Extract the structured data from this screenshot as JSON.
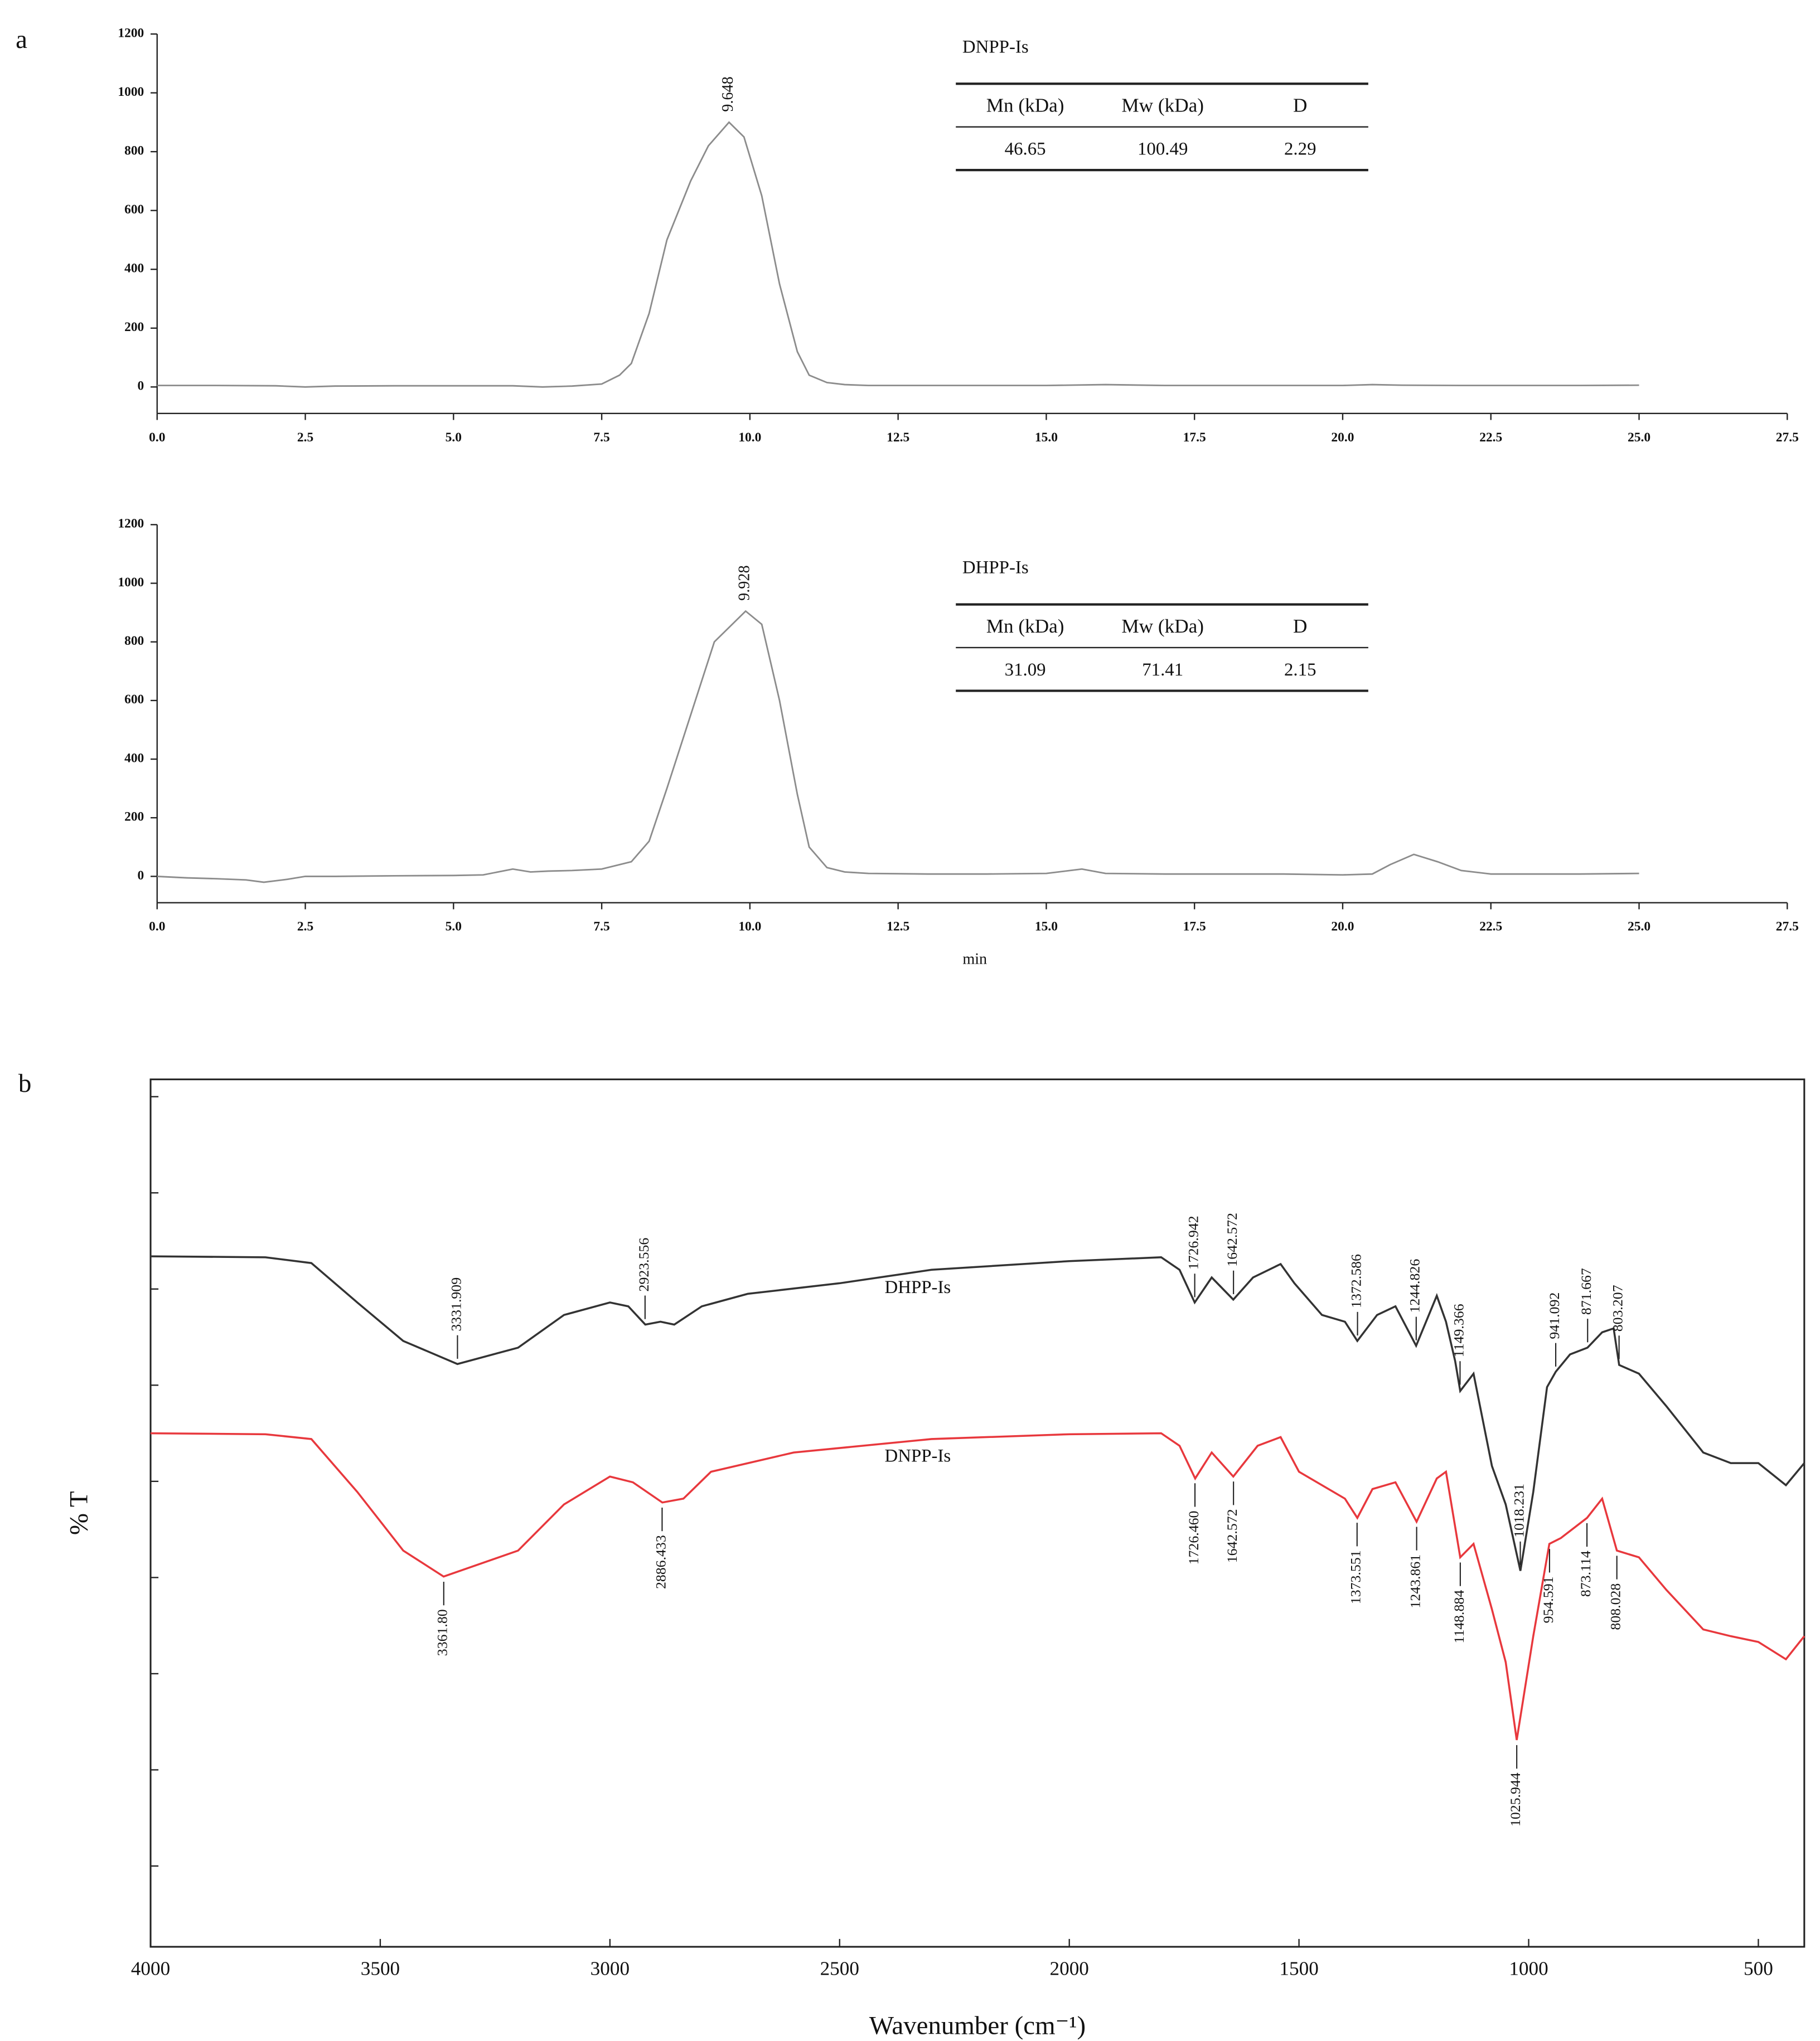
{
  "chart_data": [
    {
      "type": "line",
      "panel_label": "a",
      "xlim": [
        0,
        27.5
      ],
      "xticks": [
        {
          "value": 0,
          "label": "0.0"
        },
        2.5,
        {
          "value": 5,
          "label": "5.0"
        },
        7.5,
        {
          "value": 10,
          "label": "10.0"
        },
        12.5,
        {
          "value": 15,
          "label": "15.0"
        },
        17.5,
        {
          "value": 20,
          "label": "20.0"
        },
        22.5,
        {
          "value": 25,
          "label": "25.0"
        },
        27.5
      ],
      "ylim": [
        -90,
        1200
      ],
      "yticks": [
        0,
        200,
        400,
        600,
        800,
        1000,
        1200
      ],
      "series": [
        {
          "color": "#8c8c8c",
          "x": [
            0,
            1,
            2,
            2.5,
            3,
            4,
            5,
            6,
            6.5,
            7,
            7.5,
            7.8,
            8,
            8.3,
            8.6,
            9,
            9.3,
            9.648,
            9.9,
            10.2,
            10.5,
            10.8,
            11,
            11.3,
            11.6,
            12,
            13,
            14,
            15,
            16,
            17,
            18,
            19,
            20,
            20.5,
            21,
            22,
            23,
            24,
            25
          ],
          "values": [
            5,
            5,
            4,
            0,
            3,
            4,
            4,
            4,
            0,
            3,
            10,
            40,
            80,
            250,
            500,
            700,
            820,
            900,
            850,
            650,
            350,
            120,
            40,
            15,
            8,
            5,
            5,
            5,
            5,
            8,
            5,
            5,
            5,
            5,
            8,
            6,
            5,
            5,
            5,
            6
          ]
        }
      ],
      "peak": {
        "x": 9.648,
        "label": "9.648"
      },
      "table": {
        "title": "DNPP-Is",
        "columns": [
          "Mn (kDa)",
          "Mw (kDa)",
          "D"
        ],
        "rows": [
          [
            "46.65",
            "100.49",
            "2.29"
          ]
        ]
      }
    },
    {
      "type": "line",
      "xlabel": "min",
      "xlim": [
        0,
        27.5
      ],
      "xticks": [
        {
          "value": 0,
          "label": "0.0"
        },
        2.5,
        {
          "value": 5,
          "label": "5.0"
        },
        7.5,
        {
          "value": 10,
          "label": "10.0"
        },
        12.5,
        {
          "value": 15,
          "label": "15.0"
        },
        17.5,
        {
          "value": 20,
          "label": "20.0"
        },
        22.5,
        {
          "value": 25,
          "label": "25.0"
        },
        27.5
      ],
      "ylim": [
        -90,
        1200
      ],
      "yticks": [
        0,
        200,
        400,
        600,
        800,
        1000,
        1200
      ],
      "series": [
        {
          "color": "#8c8c8c",
          "x": [
            0,
            0.5,
            1,
            1.5,
            1.8,
            2.2,
            2.5,
            3,
            4,
            5,
            5.5,
            6,
            6.3,
            6.6,
            7,
            7.5,
            8,
            8.3,
            8.6,
            9,
            9.4,
            9.928,
            10.2,
            10.5,
            10.8,
            11,
            11.3,
            11.6,
            12,
            13,
            14,
            15,
            15.6,
            16,
            17,
            18,
            19,
            20,
            20.5,
            20.8,
            21.2,
            21.6,
            22,
            22.5,
            23,
            24,
            25
          ],
          "values": [
            0,
            -5,
            -8,
            -12,
            -20,
            -10,
            0,
            0,
            2,
            3,
            5,
            25,
            15,
            18,
            20,
            25,
            50,
            120,
            300,
            550,
            800,
            905,
            860,
            600,
            280,
            100,
            30,
            15,
            10,
            8,
            8,
            10,
            25,
            10,
            8,
            8,
            8,
            5,
            8,
            40,
            75,
            50,
            20,
            8,
            8,
            8,
            10
          ]
        }
      ],
      "peak": {
        "x": 9.928,
        "label": "9.928"
      },
      "table": {
        "title": "DHPP-Is",
        "columns": [
          "Mn (kDa)",
          "Mw (kDa)",
          "D"
        ],
        "rows": [
          [
            "31.09",
            "71.41",
            "2.15"
          ]
        ]
      }
    },
    {
      "type": "line",
      "panel_label": "b",
      "xlabel": "Wavenumber (cm⁻¹)",
      "ylabel": "% T",
      "xlim": [
        4000,
        400
      ],
      "xticks": [
        4000,
        3500,
        3000,
        2500,
        2000,
        1500,
        1000,
        500
      ],
      "ylim": [
        -0.84,
        8.18
      ],
      "yticks": [
        0,
        1,
        2,
        3,
        4,
        5,
        6,
        7,
        8
      ],
      "ytick_labels": false,
      "series": [
        {
          "name": "DHPP-Is",
          "color": "#333333",
          "x": [
            4000,
            3750,
            3650,
            3550,
            3450,
            3332,
            3200,
            3100,
            3000,
            2960,
            2923,
            2890,
            2860,
            2800,
            2700,
            2500,
            2300,
            2000,
            1800,
            1760,
            1727,
            1690,
            1643,
            1600,
            1540,
            1510,
            1450,
            1400,
            1373,
            1330,
            1290,
            1245,
            1200,
            1180,
            1160,
            1149,
            1120,
            1080,
            1050,
            1018,
            990,
            960,
            941,
            910,
            872,
            840,
            815,
            803,
            760,
            700,
            620,
            560,
            500,
            440,
            400
          ],
          "values": [
            6.34,
            6.33,
            6.27,
            5.86,
            5.46,
            5.22,
            5.39,
            5.73,
            5.86,
            5.82,
            5.63,
            5.66,
            5.63,
            5.82,
            5.95,
            6.06,
            6.2,
            6.29,
            6.33,
            6.2,
            5.86,
            6.12,
            5.89,
            6.12,
            6.26,
            6.06,
            5.73,
            5.66,
            5.46,
            5.73,
            5.82,
            5.41,
            5.93,
            5.66,
            5.25,
            4.94,
            5.12,
            4.16,
            3.76,
            3.07,
            3.89,
            4.98,
            5.14,
            5.32,
            5.39,
            5.55,
            5.59,
            5.21,
            5.12,
            4.78,
            4.3,
            4.19,
            4.19,
            3.96,
            4.19
          ],
          "peaks": [
            {
              "x": 3331.909,
              "label": "3331.909"
            },
            {
              "x": 2923.556,
              "label": "2923.556"
            },
            {
              "x": 1726.942,
              "label": "1726.942"
            },
            {
              "x": 1642.572,
              "label": "1642.572"
            },
            {
              "x": 1372.586,
              "label": "1372.586"
            },
            {
              "x": 1244.826,
              "label": "1244.826"
            },
            {
              "x": 1149.366,
              "label": "1149.366"
            },
            {
              "x": 1018.231,
              "label": "1018.231"
            },
            {
              "x": 941.092,
              "label": "941.092"
            },
            {
              "x": 871.667,
              "label": "871.667"
            },
            {
              "x": 803.207,
              "label": "803.207"
            }
          ]
        },
        {
          "name": "DNPP-Is",
          "color": "#e8383d",
          "x": [
            4000,
            3750,
            3650,
            3550,
            3450,
            3362,
            3200,
            3100,
            3000,
            2950,
            2886,
            2840,
            2780,
            2600,
            2300,
            2000,
            1800,
            1760,
            1726,
            1690,
            1643,
            1590,
            1540,
            1500,
            1450,
            1400,
            1373,
            1340,
            1290,
            1244,
            1200,
            1180,
            1149,
            1120,
            1080,
            1050,
            1026,
            990,
            955,
            930,
            873,
            840,
            808,
            760,
            700,
            620,
            560,
            500,
            440,
            400
          ],
          "values": [
            4.5,
            4.49,
            4.44,
            3.89,
            3.28,
            3.01,
            3.28,
            3.76,
            4.05,
            3.99,
            3.78,
            3.82,
            4.1,
            4.3,
            4.44,
            4.49,
            4.5,
            4.37,
            4.03,
            4.3,
            4.05,
            4.37,
            4.46,
            4.1,
            3.96,
            3.82,
            3.62,
            3.92,
            3.99,
            3.58,
            4.03,
            4.1,
            3.21,
            3.35,
            2.67,
            2.12,
            1.31,
            2.39,
            3.35,
            3.41,
            3.62,
            3.82,
            3.28,
            3.21,
            2.87,
            2.46,
            2.39,
            2.33,
            2.15,
            2.39
          ],
          "peaks": [
            {
              "x": 3361.8,
              "label": "3361.80"
            },
            {
              "x": 2886.433,
              "label": "2886.433"
            },
            {
              "x": 1726.46,
              "label": "1726.460"
            },
            {
              "x": 1642.572,
              "label": "1642.572"
            },
            {
              "x": 1373.551,
              "label": "1373.551"
            },
            {
              "x": 1243.861,
              "label": "1243.861"
            },
            {
              "x": 1148.884,
              "label": "1148.884"
            },
            {
              "x": 1025.944,
              "label": "1025.944"
            },
            {
              "x": 954.591,
              "label": "954.591"
            },
            {
              "x": 873.114,
              "label": "873.114"
            },
            {
              "x": 808.028,
              "label": "808.028"
            }
          ]
        }
      ]
    }
  ]
}
